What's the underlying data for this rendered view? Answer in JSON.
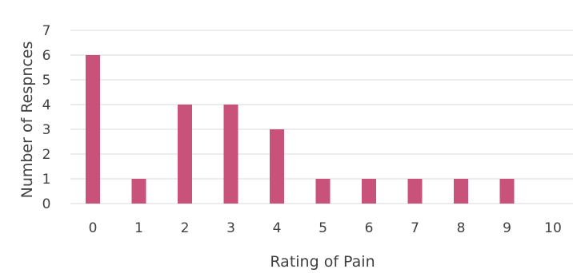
{
  "chart_data": {
    "type": "bar",
    "title": "",
    "xlabel": "Rating of Pain",
    "ylabel": "Number of Respnces",
    "categories": [
      "0",
      "1",
      "2",
      "3",
      "4",
      "5",
      "6",
      "7",
      "8",
      "9",
      "10"
    ],
    "values": [
      6,
      1,
      4,
      4,
      3,
      1,
      1,
      1,
      1,
      1,
      0
    ],
    "ylim": [
      0,
      7
    ],
    "yticks": [
      "0",
      "1",
      "2",
      "3",
      "4",
      "5",
      "6",
      "7"
    ],
    "grid": true,
    "legend": "none",
    "colors": {
      "bar": "#C9527A",
      "grid": "#D9D9D9",
      "text": "#404040"
    }
  }
}
